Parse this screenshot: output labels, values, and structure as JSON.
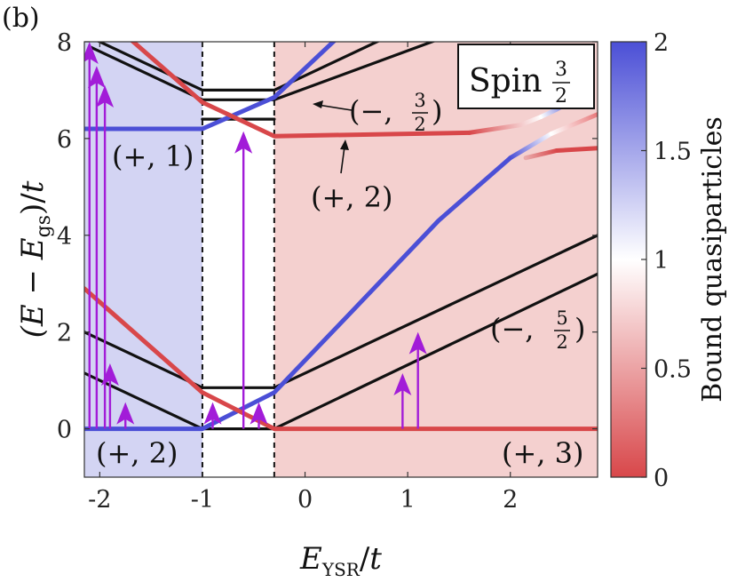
{
  "panel_label": "(b)",
  "colorbar": {
    "label": "Bound quasiparticles",
    "range": [
      0,
      2
    ],
    "ticks": [
      "0",
      "0.5",
      "1",
      "1.5",
      "2"
    ],
    "colors": {
      "low": "#d8474a",
      "mid": "#ffffff",
      "high": "#4b4fd6"
    }
  },
  "legend_box": {
    "text": "Spin",
    "frac_num": "3",
    "frac_den": "2"
  },
  "annotations": [
    {
      "id": "minus-three-halves",
      "sign": "(−,",
      "num": "3",
      "den": "2",
      "close": ")"
    },
    {
      "id": "plus-two-mid",
      "text": "(+, 2)"
    },
    {
      "id": "plus-one",
      "text": "(+, 1)"
    },
    {
      "id": "minus-five-halves",
      "sign": "(−,",
      "num": "5",
      "den": "2",
      "close": ")"
    },
    {
      "id": "plus-two-bottom",
      "text": "(+, 2)"
    },
    {
      "id": "plus-three",
      "text": "(+, 3)"
    }
  ],
  "chart_data": {
    "type": "line",
    "xlabel": "E_YSR / t",
    "ylabel": "(E − E_gs) / t",
    "xlim": [
      -2.15,
      2.85
    ],
    "ylim": [
      -1,
      8
    ],
    "xticks": [
      -2,
      -1,
      0,
      1,
      2
    ],
    "yticks": [
      0,
      2,
      4,
      6,
      8
    ],
    "regions": [
      {
        "x": [
          -2.15,
          -1.0
        ],
        "color": "#d3d4f3"
      },
      {
        "x": [
          -0.3,
          2.85
        ],
        "color": "#f4d0cf"
      }
    ],
    "vlines": [
      -1.0,
      -0.3
    ],
    "series": [
      {
        "color": "#111111",
        "q": "none",
        "points": [
          [
            -2.15,
            1.15
          ],
          [
            -1.0,
            0.0
          ],
          [
            -0.3,
            0.0
          ],
          [
            2.85,
            3.2
          ]
        ]
      },
      {
        "color": "#111111",
        "q": "none",
        "points": [
          [
            -2.15,
            2.0
          ],
          [
            -1.0,
            0.85
          ],
          [
            -0.3,
            0.85
          ],
          [
            2.85,
            4.0
          ]
        ]
      },
      {
        "color": "#111111",
        "q": "none",
        "points": [
          [
            -2.1,
            7.9
          ],
          [
            -1.0,
            6.8
          ],
          [
            -0.3,
            6.8
          ],
          [
            1.3,
            8.05
          ]
        ]
      },
      {
        "color": "#111111",
        "q": "none",
        "points": [
          [
            -2.05,
            8.05
          ],
          [
            -1.0,
            7.0
          ],
          [
            -0.3,
            7.0
          ],
          [
            0.75,
            8.05
          ]
        ]
      },
      {
        "color": "#111111",
        "q": "none",
        "points": [
          [
            -1.0,
            6.4
          ],
          [
            -0.3,
            6.4
          ]
        ]
      },
      {
        "color": "#4b4fd6",
        "q": "blue",
        "points": [
          [
            -2.15,
            0.0
          ],
          [
            -1.0,
            0.0
          ],
          [
            -0.3,
            0.75
          ],
          [
            0.4,
            2.3
          ],
          [
            1.3,
            4.3
          ],
          [
            2.0,
            5.6
          ]
        ]
      },
      {
        "color": "#gradient",
        "q": "b2w",
        "points": [
          [
            2.0,
            5.6
          ],
          [
            2.4,
            6.1
          ]
        ]
      },
      {
        "color": "#gradient",
        "q": "w2r",
        "points": [
          [
            2.4,
            6.1
          ],
          [
            2.85,
            6.5
          ]
        ]
      },
      {
        "color": "#d8474a",
        "q": "red",
        "points": [
          [
            -2.15,
            2.9
          ],
          [
            -1.0,
            0.75
          ],
          [
            -0.3,
            0.0
          ],
          [
            2.85,
            0.0
          ]
        ]
      },
      {
        "color": "#4b4fd6",
        "q": "blue",
        "points": [
          [
            -2.15,
            6.2
          ],
          [
            -1.0,
            6.2
          ],
          [
            -0.3,
            6.85
          ],
          [
            0.3,
            8.05
          ]
        ]
      },
      {
        "color": "#d8474a",
        "q": "red",
        "points": [
          [
            -1.7,
            8.05
          ],
          [
            -1.0,
            6.75
          ],
          [
            -0.3,
            6.05
          ],
          [
            1.6,
            6.12
          ]
        ]
      },
      {
        "color": "#gradient",
        "q": "r2w",
        "points": [
          [
            1.6,
            6.12
          ],
          [
            2.1,
            6.28
          ],
          [
            2.3,
            6.45
          ]
        ]
      },
      {
        "color": "#gradient",
        "q": "w2b",
        "points": [
          [
            2.3,
            6.45
          ],
          [
            2.45,
            6.6
          ],
          [
            2.55,
            6.72
          ]
        ]
      },
      {
        "color": "#d8474a",
        "q": "red",
        "points": [
          [
            2.45,
            5.75
          ],
          [
            2.85,
            5.8
          ]
        ]
      },
      {
        "color": "#gradient",
        "q": "w2r2",
        "points": [
          [
            2.15,
            5.6
          ],
          [
            2.45,
            5.75
          ]
        ]
      }
    ],
    "arrows": [
      {
        "x": -2.1,
        "y0": 0,
        "y1": 8.0
      },
      {
        "x": -2.03,
        "y0": 0,
        "y1": 7.5
      },
      {
        "x": -1.95,
        "y0": 0,
        "y1": 7.1
      },
      {
        "x": -1.9,
        "y0": 0,
        "y1": 1.35
      },
      {
        "x": -1.75,
        "y0": 0,
        "y1": 0.55
      },
      {
        "x": -0.9,
        "y0": 0,
        "y1": 0.55
      },
      {
        "x": -0.6,
        "y0": 0,
        "y1": 6.15
      },
      {
        "x": -0.45,
        "y0": 0,
        "y1": 0.55
      },
      {
        "x": 0.95,
        "y0": 0,
        "y1": 1.15
      },
      {
        "x": 1.1,
        "y0": 0,
        "y1": 2.0
      }
    ]
  }
}
